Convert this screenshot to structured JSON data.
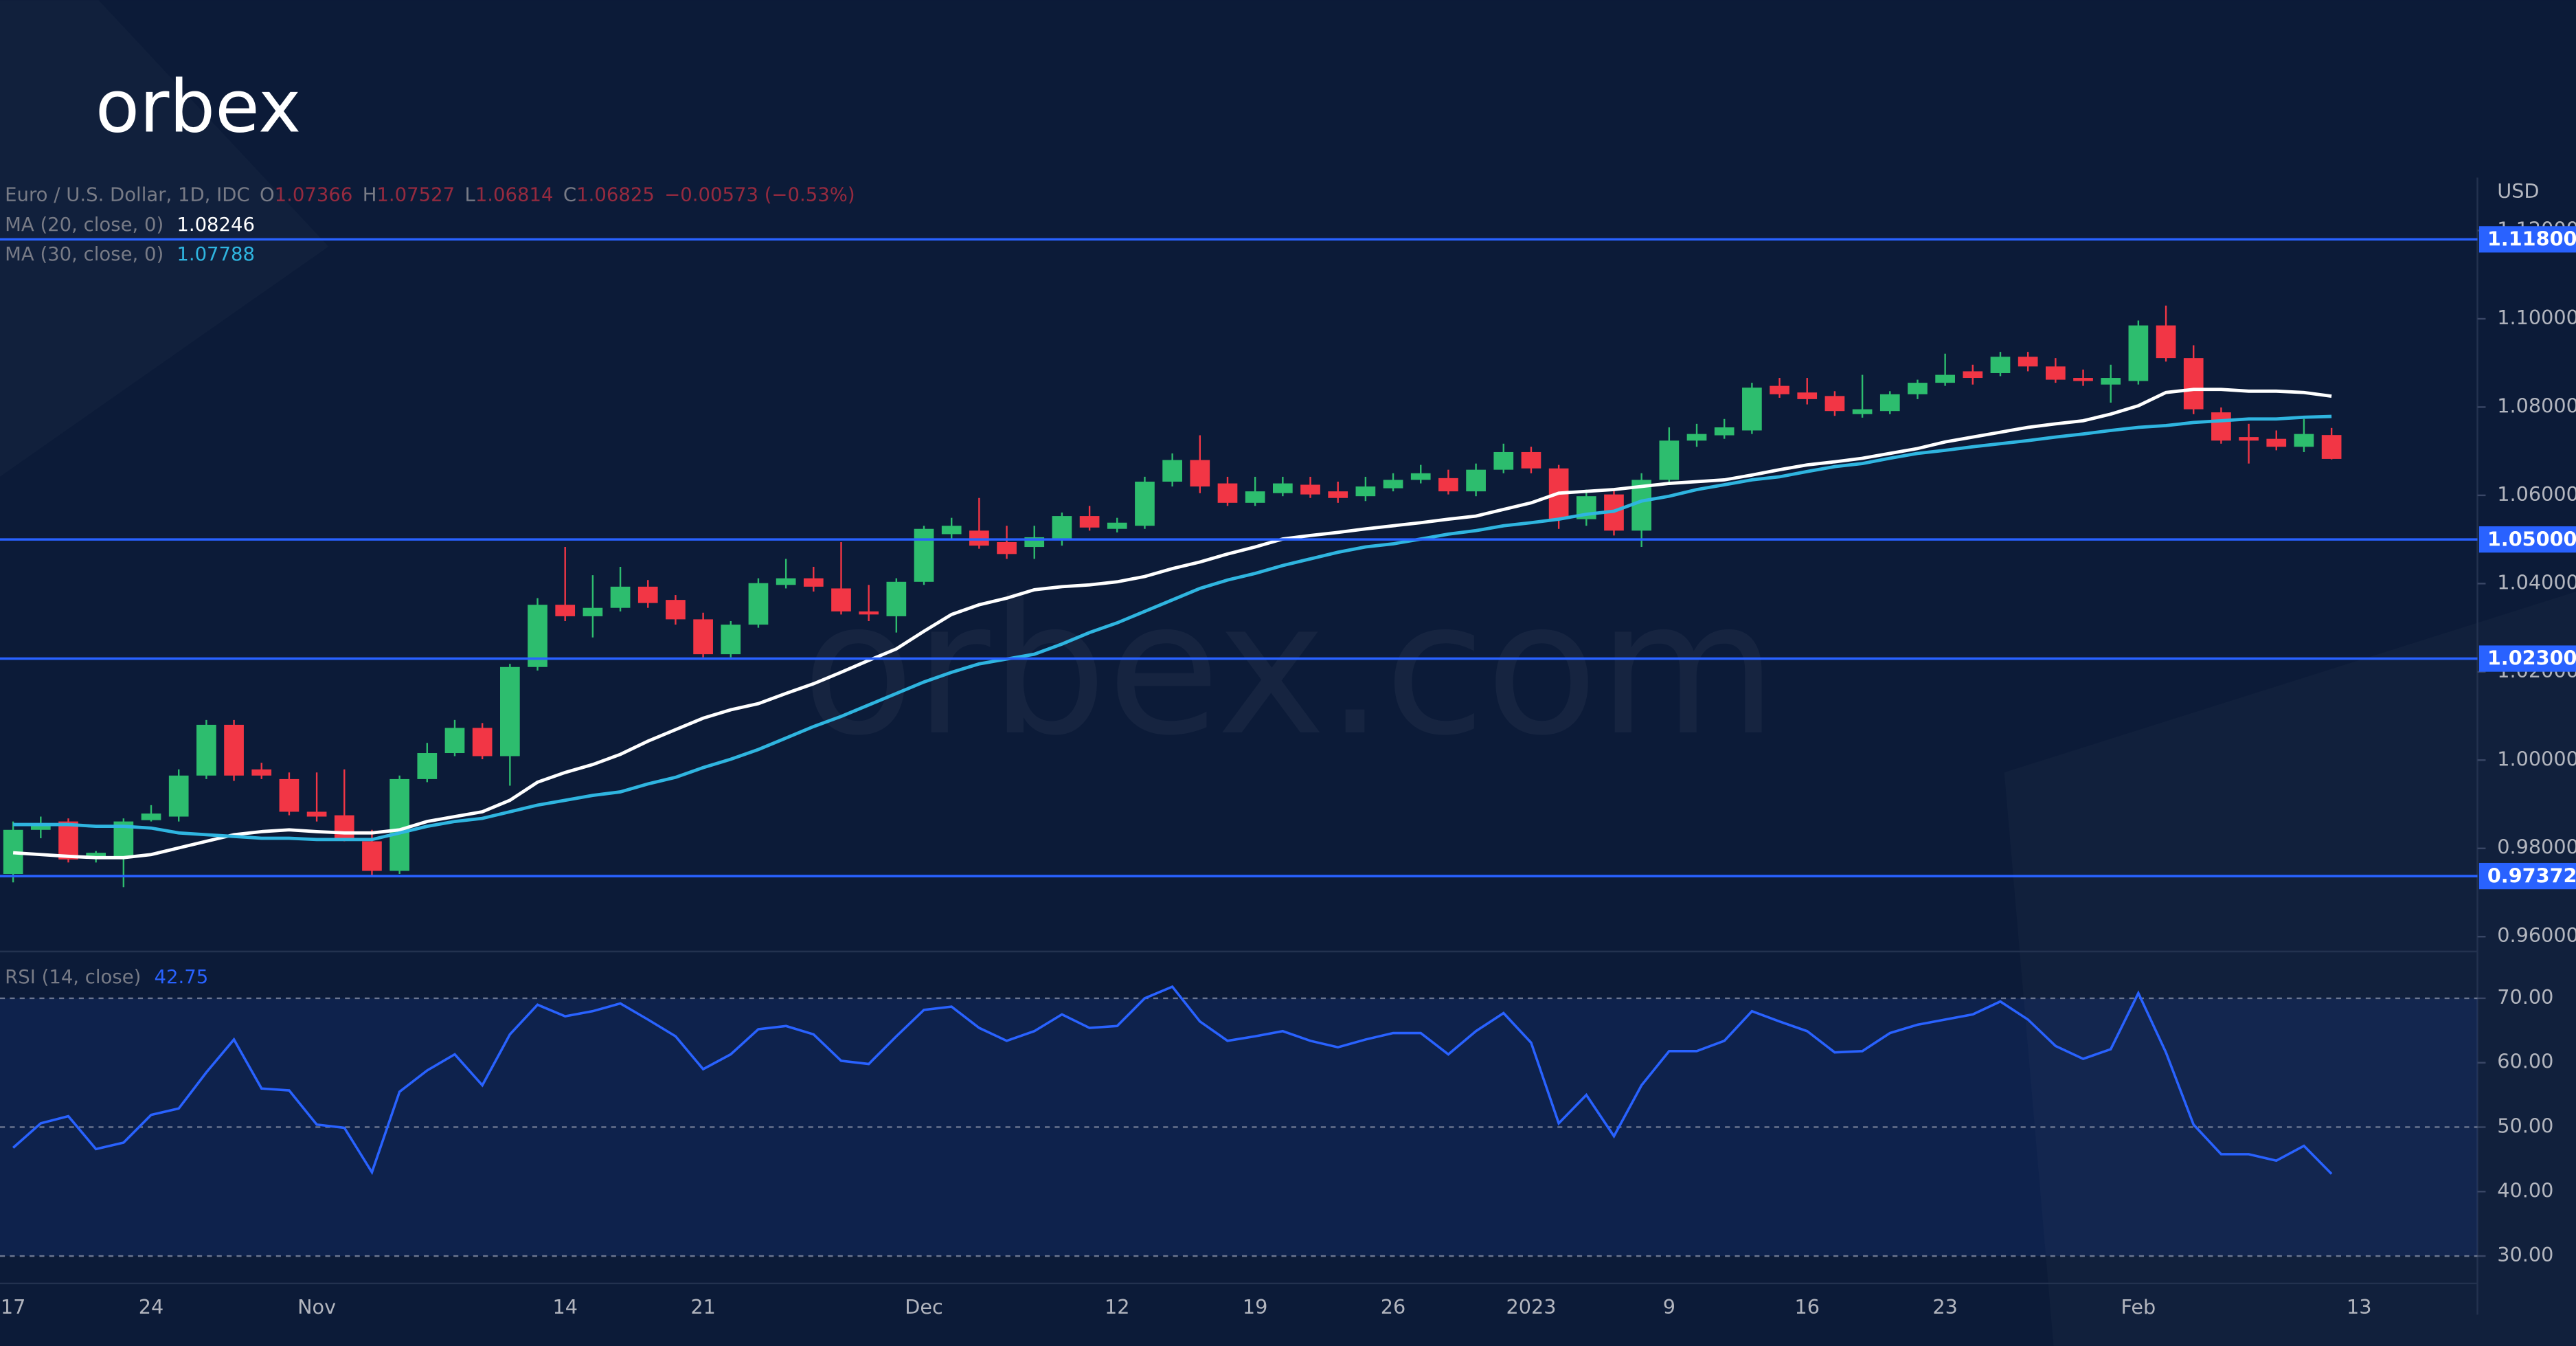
{
  "logo": "orbex",
  "watermark": "orbex.com",
  "chart_data": [
    {
      "type": "candlestick",
      "title": "Euro / U.S. Dollar, 1D, IDC",
      "quote": [
        {
          "key": "O",
          "value": 1.07366
        },
        {
          "key": "H",
          "value": 1.07527
        },
        {
          "key": "L",
          "value": 1.06814
        },
        {
          "key": "C",
          "value": 1.06825
        }
      ],
      "change": "−0.00573 (−0.53%)",
      "currency": "USD",
      "categories": [
        "17",
        null,
        null,
        null,
        null,
        "24",
        null,
        null,
        null,
        null,
        null,
        "Nov",
        null,
        null,
        null,
        null,
        null,
        null,
        null,
        null,
        "14",
        null,
        null,
        null,
        null,
        "21",
        null,
        null,
        null,
        null,
        null,
        null,
        null,
        "Dec",
        null,
        null,
        null,
        null,
        null,
        null,
        "12",
        null,
        null,
        null,
        null,
        "19",
        null,
        null,
        null,
        null,
        "26",
        null,
        null,
        null,
        null,
        "2023",
        null,
        null,
        null,
        null,
        "9",
        null,
        null,
        null,
        null,
        "16",
        null,
        null,
        null,
        null,
        "23",
        null,
        null,
        null,
        null,
        null,
        null,
        "Feb",
        null,
        null,
        null,
        null,
        null,
        null,
        null,
        "13"
      ],
      "open": [
        0.9742,
        0.9842,
        0.9861,
        0.9779,
        0.9782,
        0.9864,
        0.9872,
        0.9965,
        1.008,
        0.9979,
        0.9957,
        0.9883,
        0.9875,
        0.9816,
        0.9749,
        0.9957,
        1.0016,
        1.0073,
        1.0009,
        1.0211,
        1.0352,
        1.0326,
        1.0345,
        1.0393,
        1.0363,
        1.0319,
        1.024,
        1.0307,
        1.0397,
        1.0412,
        1.0389,
        1.0337,
        1.0326,
        1.0404,
        1.0512,
        1.052,
        1.0494,
        1.0483,
        1.0501,
        1.0553,
        1.0524,
        1.0531,
        1.0631,
        1.068,
        1.0627,
        1.0583,
        1.0605,
        1.0624,
        1.0609,
        1.0598,
        1.0616,
        1.0635,
        1.0639,
        1.0609,
        1.0658,
        1.0698,
        1.0661,
        1.0546,
        1.0602,
        1.052,
        1.0635,
        1.0724,
        1.0736,
        1.0747,
        1.0848,
        1.0833,
        1.0825,
        1.0784,
        1.0791,
        1.0829,
        1.0855,
        1.0881,
        1.0877,
        1.0914,
        1.0892,
        1.0866,
        1.0851,
        1.0859,
        1.0985,
        1.0911,
        1.0788,
        1.0732,
        1.0728,
        1.071,
        1.07366,
        null
      ],
      "high": [
        0.9861,
        0.9872,
        0.9868,
        0.9794,
        0.9868,
        0.9898,
        0.9979,
        1.0091,
        1.0091,
        0.9994,
        0.9972,
        0.9972,
        0.9979,
        0.9842,
        0.9965,
        1.0039,
        1.0091,
        1.0084,
        1.0218,
        1.0367,
        1.0483,
        1.0419,
        1.0438,
        1.0408,
        1.0374,
        1.0334,
        1.0315,
        1.0412,
        1.0456,
        1.0438,
        1.0494,
        1.0397,
        1.0412,
        1.0531,
        1.0549,
        1.0594,
        1.0531,
        1.0531,
        1.0561,
        1.0576,
        1.0549,
        1.0642,
        1.0695,
        1.0736,
        1.0642,
        1.0642,
        1.0642,
        1.0642,
        1.0631,
        1.0642,
        1.065,
        1.0669,
        1.0658,
        1.0672,
        1.0717,
        1.071,
        1.0669,
        1.0613,
        1.0613,
        1.065,
        1.0754,
        1.0762,
        1.0773,
        1.0855,
        1.0866,
        1.0866,
        1.0836,
        1.0873,
        1.0836,
        1.0862,
        1.0921,
        1.0896,
        1.0925,
        1.0925,
        1.0911,
        1.0885,
        1.0896,
        1.0996,
        1.103,
        1.094,
        1.0799,
        1.0762,
        1.0747,
        1.0773,
        1.07527,
        null
      ],
      "low": [
        0.9723,
        0.9823,
        0.9768,
        0.9768,
        0.9712,
        0.9861,
        0.9861,
        0.9957,
        0.9953,
        0.9957,
        0.9875,
        0.9861,
        0.9816,
        0.9738,
        0.9742,
        0.995,
        1.0009,
        1.0002,
        0.9942,
        1.0203,
        1.0315,
        1.0278,
        1.0337,
        1.0345,
        1.0307,
        1.0233,
        1.0233,
        1.03,
        1.0389,
        1.0382,
        1.033,
        1.0315,
        1.0289,
        1.0397,
        1.0501,
        1.0479,
        1.0456,
        1.0456,
        1.0486,
        1.052,
        1.0516,
        1.0524,
        1.062,
        1.0605,
        1.0576,
        1.0576,
        1.0598,
        1.0594,
        1.0583,
        1.0587,
        1.0609,
        1.0627,
        1.0602,
        1.0598,
        1.065,
        1.065,
        1.0524,
        1.0531,
        1.0509,
        1.0483,
        1.0627,
        1.071,
        1.0728,
        1.0739,
        1.0821,
        1.0806,
        1.078,
        1.0776,
        1.0784,
        1.0818,
        1.0848,
        1.0851,
        1.087,
        1.0881,
        1.0855,
        1.0848,
        1.081,
        1.0851,
        1.0903,
        1.0784,
        1.0717,
        1.0672,
        1.0702,
        1.0698,
        1.06814,
        null
      ],
      "close": [
        0.9842,
        0.9857,
        0.9775,
        0.979,
        0.9861,
        0.9879,
        0.9965,
        1.008,
        0.9965,
        0.9965,
        0.9883,
        0.9872,
        0.9823,
        0.9749,
        0.9957,
        1.0016,
        1.0073,
        1.0009,
        1.0211,
        1.0352,
        1.0326,
        1.0345,
        1.0393,
        1.0356,
        1.0319,
        1.024,
        1.0307,
        1.0401,
        1.0412,
        1.0393,
        1.0337,
        1.033,
        1.0404,
        1.0524,
        1.0531,
        1.0486,
        1.0467,
        1.0505,
        1.0553,
        1.0527,
        1.0538,
        1.0631,
        1.068,
        1.062,
        1.0583,
        1.0609,
        1.0627,
        1.0602,
        1.0594,
        1.062,
        1.0635,
        1.065,
        1.0609,
        1.0658,
        1.0698,
        1.0661,
        1.0546,
        1.0598,
        1.052,
        1.0635,
        1.0724,
        1.0739,
        1.0754,
        1.0844,
        1.0829,
        1.0818,
        1.0791,
        1.0795,
        1.0829,
        1.0855,
        1.0873,
        1.0866,
        1.0914,
        1.0892,
        1.0862,
        1.0859,
        1.0866,
        1.0985,
        1.0911,
        1.0795,
        1.0724,
        1.0724,
        1.071,
        1.0739,
        1.06825,
        null
      ],
      "up_color": "#2dbd6e",
      "down_color": "#f23645",
      "series": [
        {
          "name": "MA (20, close, 0)",
          "color": "#ffffff",
          "last_value": 1.08246,
          "values": [
            0.979,
            0.9786,
            0.9782,
            0.9779,
            0.9779,
            0.9786,
            0.9801,
            0.9816,
            0.9831,
            0.9838,
            0.9842,
            0.9838,
            0.9835,
            0.9835,
            0.9842,
            0.9861,
            0.9872,
            0.9883,
            0.9909,
            0.995,
            0.9972,
            0.999,
            1.0013,
            1.0043,
            1.0069,
            1.0095,
            1.0114,
            1.0128,
            1.0151,
            1.0173,
            1.0199,
            1.0226,
            1.0252,
            1.0292,
            1.033,
            1.0352,
            1.0367,
            1.0386,
            1.0393,
            1.0397,
            1.0404,
            1.0416,
            1.0434,
            1.0449,
            1.0467,
            1.0483,
            1.0501,
            1.0509,
            1.0516,
            1.0524,
            1.0531,
            1.0538,
            1.0546,
            1.0553,
            1.0568,
            1.0583,
            1.0605,
            1.0609,
            1.0613,
            1.062,
            1.0627,
            1.0631,
            1.0635,
            1.0646,
            1.0658,
            1.0669,
            1.0676,
            1.0684,
            1.0695,
            1.0706,
            1.0721,
            1.0732,
            1.0743,
            1.0754,
            1.0762,
            1.0769,
            1.0784,
            1.0803,
            1.0833,
            1.084,
            1.084,
            1.0836,
            1.0836,
            1.0833,
            1.08246,
            null
          ]
        },
        {
          "name": "MA (30, close, 0)",
          "color": "#2fb5e0",
          "last_value": 1.07788,
          "values": [
            0.9854,
            0.9854,
            0.9854,
            0.985,
            0.985,
            0.9846,
            0.9835,
            0.9831,
            0.9827,
            0.9823,
            0.9823,
            0.982,
            0.982,
            0.982,
            0.9835,
            0.985,
            0.9861,
            0.9868,
            0.9883,
            0.9898,
            0.9909,
            0.992,
            0.9928,
            0.9946,
            0.9961,
            0.9983,
            1.0002,
            1.0024,
            1.005,
            1.0076,
            1.0099,
            1.0125,
            1.0151,
            1.0177,
            1.0199,
            1.0218,
            1.0229,
            1.024,
            1.0263,
            1.0289,
            1.0311,
            1.0337,
            1.0363,
            1.0389,
            1.0408,
            1.0423,
            1.0441,
            1.0456,
            1.0471,
            1.0483,
            1.049,
            1.0501,
            1.0512,
            1.052,
            1.0531,
            1.0538,
            1.0546,
            1.0557,
            1.0564,
            1.0587,
            1.0598,
            1.0613,
            1.0624,
            1.0635,
            1.0642,
            1.0654,
            1.0665,
            1.0672,
            1.0684,
            1.0695,
            1.0702,
            1.071,
            1.0717,
            1.0724,
            1.0732,
            1.0739,
            1.0747,
            1.0754,
            1.0758,
            1.0765,
            1.0769,
            1.0773,
            1.0773,
            1.0777,
            1.07788,
            null
          ]
        }
      ],
      "levels": [
        {
          "value": 1.118,
          "label": "1.11800"
        },
        {
          "value": 1.05,
          "label": "1.05000"
        },
        {
          "value": 1.023,
          "label": "1.02300"
        },
        {
          "value": 0.97372,
          "label": "0.97372"
        }
      ],
      "level_color": "#2962ff",
      "ylim": [
        0.957,
        1.132
      ],
      "yticks": [
        {
          "value": 0.96,
          "label": "0.96000"
        },
        {
          "value": 0.98,
          "label": "0.98000"
        },
        {
          "value": 1.0,
          "label": "1.00000"
        },
        {
          "value": 1.02,
          "label": "1.02000"
        },
        {
          "value": 1.04,
          "label": "1.04000"
        },
        {
          "value": 1.06,
          "label": "1.06000"
        },
        {
          "value": 1.08,
          "label": "1.08000"
        },
        {
          "value": 1.1,
          "label": "1.10000"
        },
        {
          "value": 1.12,
          "label": "1.12000"
        }
      ]
    },
    {
      "type": "line",
      "title": "RSI (14, close)",
      "last_value": 42.75,
      "color": "#2962ff",
      "values": [
        46.8,
        50.6,
        51.7,
        46.6,
        47.6,
        51.9,
        52.9,
        58.5,
        63.6,
        56.0,
        55.7,
        50.4,
        49.9,
        43.0,
        55.5,
        58.8,
        61.3,
        56.5,
        64.4,
        69.0,
        67.2,
        68.0,
        69.2,
        66.7,
        64.1,
        59.0,
        61.3,
        65.2,
        65.7,
        64.4,
        60.3,
        59.8,
        64.1,
        68.2,
        68.7,
        65.4,
        63.4,
        64.9,
        67.5,
        65.4,
        65.7,
        70.0,
        71.8,
        66.4,
        63.4,
        64.1,
        64.9,
        63.4,
        62.4,
        63.6,
        64.6,
        64.6,
        61.3,
        64.9,
        67.7,
        63.1,
        50.6,
        55.0,
        48.6,
        56.5,
        61.8,
        61.8,
        63.4,
        68.0,
        66.4,
        64.9,
        61.6,
        61.8,
        64.6,
        65.9,
        66.7,
        67.5,
        69.5,
        66.7,
        62.6,
        60.6,
        62.1,
        70.8,
        61.6,
        50.4,
        45.8,
        45.8,
        44.8,
        47.1,
        42.75,
        null
      ],
      "band": [
        30,
        70
      ],
      "levels": [
        70,
        50,
        30
      ],
      "ylim": [
        26,
        77
      ],
      "yticks": [
        {
          "value": 30,
          "label": "30.00"
        },
        {
          "value": 40,
          "label": "40.00"
        },
        {
          "value": 50,
          "label": "50.00"
        },
        {
          "value": 60,
          "label": "60.00"
        },
        {
          "value": 70,
          "label": "70.00"
        }
      ]
    }
  ]
}
